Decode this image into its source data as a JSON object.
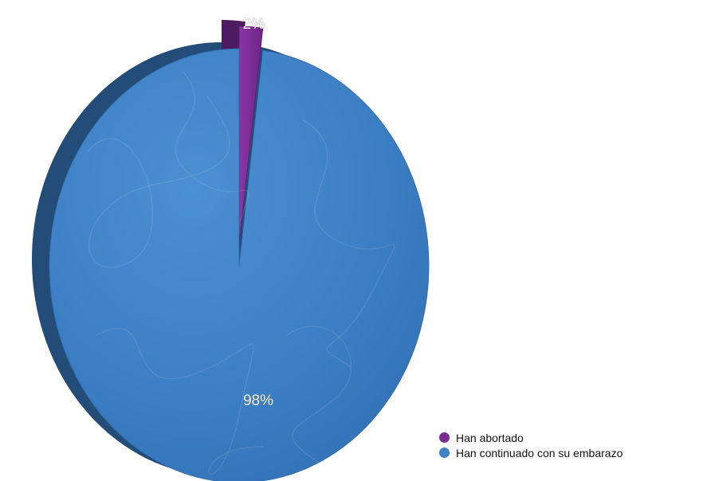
{
  "chart_data": {
    "type": "pie",
    "categories": [
      "Han abortado",
      "Han continuado con su embarazo"
    ],
    "values": [
      2,
      98
    ],
    "data_labels": [
      "2%",
      "98%"
    ],
    "colors": [
      "#7a2c93",
      "#3f82c6"
    ],
    "title": "",
    "legend_position": "bottom-right",
    "exploded_slice": "Han abortado",
    "style": "3d"
  },
  "legend": {
    "items": [
      {
        "label": "Han abortado",
        "color": "#7a2c93"
      },
      {
        "label": "Han continuado con su embarazo",
        "color": "#3f82c6"
      }
    ]
  }
}
